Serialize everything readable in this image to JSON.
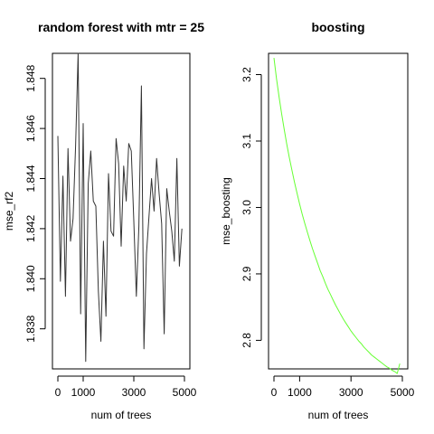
{
  "chart_data": [
    {
      "type": "line",
      "title": "random forest with mtr = 25",
      "xlabel": "num of trees",
      "ylabel": "mse_rf2",
      "xlim": [
        0,
        5000
      ],
      "ylim": [
        1.8364,
        1.849
      ],
      "x_ticks": [
        0,
        1000,
        3000,
        5000
      ],
      "x_tick_labels": [
        "0",
        "1000",
        "3000",
        "5000"
      ],
      "y_ticks": [
        1.838,
        1.84,
        1.842,
        1.844,
        1.846,
        1.848
      ],
      "y_tick_labels": [
        "1.838",
        "1.840",
        "1.842",
        "1.844",
        "1.846",
        "1.848"
      ],
      "grid": false,
      "line_color": "#333333",
      "series": [
        {
          "x": [
            0,
            100,
            200,
            300,
            400,
            500,
            600,
            700,
            800,
            900,
            1000,
            1100,
            1200,
            1300,
            1400,
            1500,
            1600,
            1700,
            1800,
            1900,
            2000,
            2100,
            2200,
            2300,
            2400,
            2500,
            2600,
            2700,
            2800,
            2900,
            3000,
            3100,
            3200,
            3300,
            3400,
            3500,
            3600,
            3700,
            3800,
            3900,
            4000,
            4100,
            4200,
            4300,
            4400,
            4500,
            4600,
            4700,
            4800,
            4900
          ],
          "y": [
            1.8457,
            1.8399,
            1.8441,
            1.8393,
            1.8452,
            1.8415,
            1.8424,
            1.8453,
            1.849,
            1.8386,
            1.8462,
            1.8367,
            1.8438,
            1.8451,
            1.8431,
            1.8429,
            1.8395,
            1.8375,
            1.8415,
            1.8385,
            1.8442,
            1.8419,
            1.8417,
            1.8456,
            1.8446,
            1.8413,
            1.8445,
            1.8431,
            1.8454,
            1.8451,
            1.8423,
            1.8393,
            1.8421,
            1.8477,
            1.8372,
            1.841,
            1.8425,
            1.844,
            1.8427,
            1.8448,
            1.8434,
            1.8422,
            1.8378,
            1.8436,
            1.8427,
            1.8419,
            1.8407,
            1.8448,
            1.8405,
            1.842
          ]
        }
      ]
    },
    {
      "type": "line",
      "title": "boosting",
      "xlabel": "num of trees",
      "ylabel": "mse_boosting",
      "xlim": [
        0,
        5000
      ],
      "ylim": [
        2.757,
        3.232
      ],
      "x_ticks": [
        0,
        1000,
        3000,
        5000
      ],
      "x_tick_labels": [
        "0",
        "1000",
        "3000",
        "5000"
      ],
      "y_ticks": [
        2.8,
        2.9,
        3.0,
        3.1,
        3.2
      ],
      "y_tick_labels": [
        "2.8",
        "2.9",
        "3.0",
        "3.1",
        "3.2"
      ],
      "grid": false,
      "line_color": "#66ff33",
      "series": [
        {
          "x": [
            0,
            100,
            200,
            300,
            400,
            500,
            600,
            700,
            800,
            900,
            1000,
            1100,
            1200,
            1300,
            1400,
            1500,
            1600,
            1700,
            1800,
            1900,
            2000,
            2100,
            2200,
            2300,
            2400,
            2500,
            2600,
            2700,
            2800,
            2900,
            3000,
            3100,
            3200,
            3300,
            3400,
            3500,
            3600,
            3700,
            3800,
            3900,
            4000,
            4100,
            4200,
            4300,
            4400,
            4500,
            4600,
            4700,
            4800,
            4900
          ],
          "y": [
            3.225,
            3.194,
            3.166,
            3.141,
            3.117,
            3.095,
            3.075,
            3.056,
            3.038,
            3.021,
            3.005,
            2.99,
            2.976,
            2.963,
            2.95,
            2.938,
            2.927,
            2.916,
            2.905,
            2.896,
            2.886,
            2.877,
            2.869,
            2.861,
            2.853,
            2.846,
            2.839,
            2.832,
            2.826,
            2.82,
            2.814,
            2.809,
            2.804,
            2.799,
            2.795,
            2.79,
            2.786,
            2.782,
            2.778,
            2.775,
            2.772,
            2.769,
            2.766,
            2.763,
            2.76,
            2.758,
            2.755,
            2.753,
            2.75,
            2.765
          ]
        }
      ]
    }
  ]
}
